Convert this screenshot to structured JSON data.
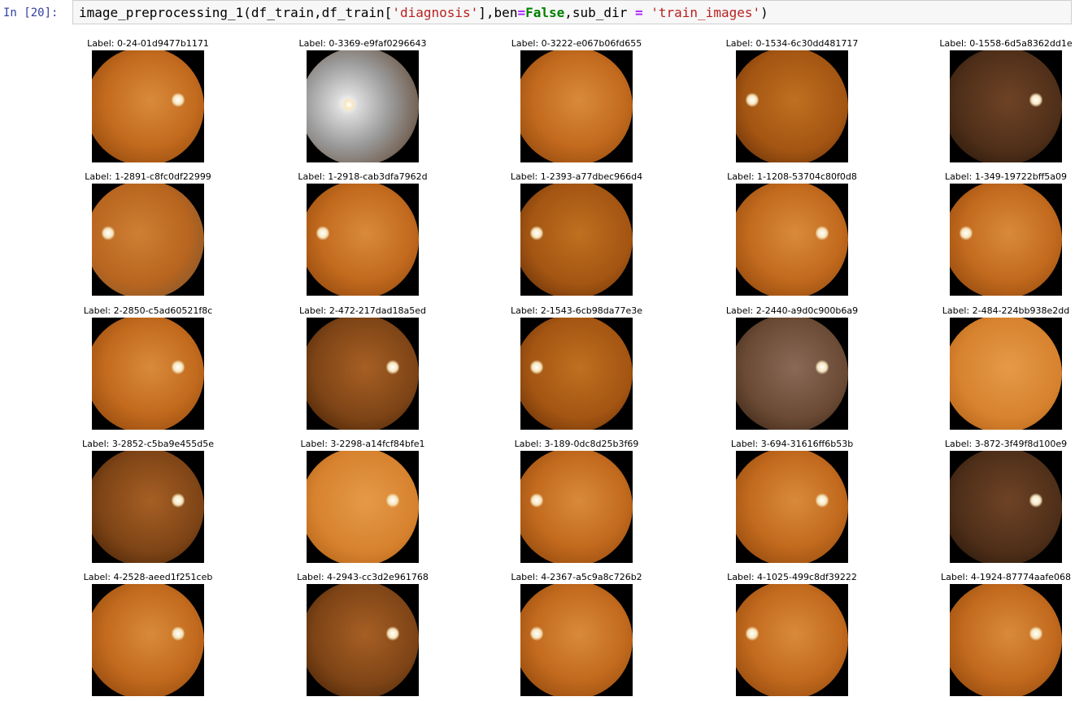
{
  "cell": {
    "prompt": "In [20]:",
    "code": {
      "fn": "image_preprocessing_1(df_train,df_train[",
      "str1": "'diagnosis'",
      "mid": "],ben",
      "eq": "=",
      "kw": "False",
      "tail": ",sub_dir ",
      "eq2": "=",
      "sp": " ",
      "str2": "'train_images'",
      "close": ")"
    }
  },
  "images": [
    {
      "label": "Label: 0-24-01d9477b1171",
      "tone": "orange",
      "disc": "right"
    },
    {
      "label": "Label: 0-3369-e9faf0296643",
      "tone": "gray",
      "disc": "center-left"
    },
    {
      "label": "Label: 0-3222-e067b06fd655",
      "tone": "orange",
      "disc": "none"
    },
    {
      "label": "Label: 0-1534-6c30dd481717",
      "tone": "orange-dark",
      "disc": "left"
    },
    {
      "label": "Label: 0-1558-6d5a8362dd1e",
      "tone": "brown-dark",
      "disc": "right"
    },
    {
      "label": "Label: 1-2891-c8fc0df22999",
      "tone": "orange-gray",
      "disc": "left"
    },
    {
      "label": "Label: 1-2918-cab3dfa7962d",
      "tone": "orange",
      "disc": "left"
    },
    {
      "label": "Label: 1-2393-a77dbec966d4",
      "tone": "orange-dark",
      "disc": "left"
    },
    {
      "label": "Label: 1-1208-53704c80f0d8",
      "tone": "orange",
      "disc": "right"
    },
    {
      "label": "Label: 1-349-19722bff5a09",
      "tone": "orange",
      "disc": "left"
    },
    {
      "label": "Label: 2-2850-c5ad60521f8c",
      "tone": "orange",
      "disc": "right"
    },
    {
      "label": "Label: 2-472-217dad18a5ed",
      "tone": "brown",
      "disc": "right"
    },
    {
      "label": "Label: 2-1543-6cb98da77e3e",
      "tone": "orange-dark",
      "disc": "left"
    },
    {
      "label": "Label: 2-2440-a9d0c900b6a9",
      "tone": "gray-brown",
      "disc": "right"
    },
    {
      "label": "Label: 2-484-224bb938e2dd",
      "tone": "orange-light",
      "disc": "none"
    },
    {
      "label": "Label: 3-2852-c5ba9e455d5e",
      "tone": "brown",
      "disc": "right"
    },
    {
      "label": "Label: 3-2298-a14fcf84bfe1",
      "tone": "orange-light",
      "disc": "right"
    },
    {
      "label": "Label: 3-189-0dc8d25b3f69",
      "tone": "orange",
      "disc": "left"
    },
    {
      "label": "Label: 3-694-31616ff6b53b",
      "tone": "orange",
      "disc": "right"
    },
    {
      "label": "Label: 3-872-3f49f8d100e9",
      "tone": "brown-dark",
      "disc": "right"
    },
    {
      "label": "Label: 4-2528-aeed1f251ceb",
      "tone": "orange",
      "disc": "right"
    },
    {
      "label": "Label: 4-2943-cc3d2e961768",
      "tone": "brown",
      "disc": "right"
    },
    {
      "label": "Label: 4-2367-a5c9a8c726b2",
      "tone": "orange",
      "disc": "left"
    },
    {
      "label": "Label: 4-1025-499c8df39222",
      "tone": "orange",
      "disc": "left"
    },
    {
      "label": "Label: 4-1924-87774aafe068",
      "tone": "orange",
      "disc": "right"
    }
  ]
}
